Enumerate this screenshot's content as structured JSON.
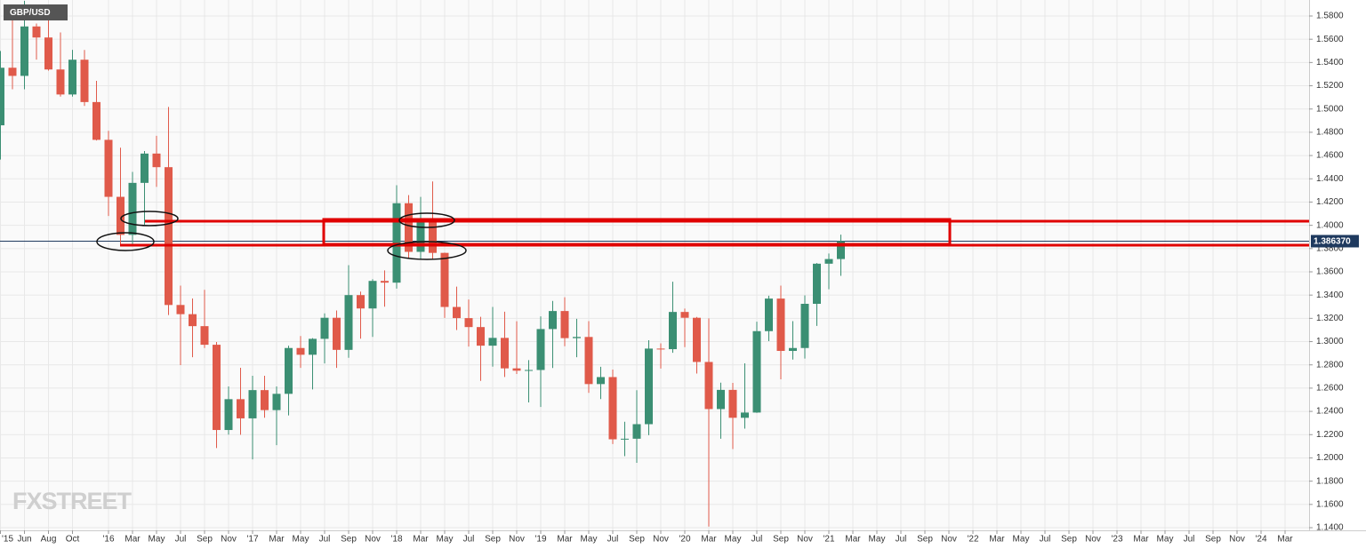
{
  "chart_data": {
    "type": "candlestick",
    "symbol": "GBP/USD",
    "watermark": "FXSTREET",
    "open": [
      1.486,
      1.5355,
      1.5285,
      1.571,
      1.5615,
      1.534,
      1.5125,
      1.5424,
      1.506,
      1.4735,
      1.4245,
      1.3918,
      1.4365,
      1.4617,
      1.45,
      1.3315,
      1.3236,
      1.3133,
      1.2973,
      1.224,
      1.2505,
      1.234,
      1.2583,
      1.2411,
      1.2551,
      1.2945,
      1.2887,
      1.3024,
      1.3205,
      1.2929,
      1.34,
      1.3285,
      1.3522,
      1.3507,
      1.419,
      1.3772,
      1.4025,
      1.3763,
      1.3298,
      1.3202,
      1.3125,
      1.2965,
      1.3032,
      1.277,
      1.275,
      1.2756,
      1.3108,
      1.3263,
      1.303,
      1.304,
      1.2635,
      1.2695,
      1.216,
      1.2165,
      1.229,
      1.294,
      1.2935,
      1.3255,
      1.3205,
      1.2825,
      1.242,
      1.2585,
      1.2345,
      1.239,
      1.309,
      1.337,
      1.292,
      1.2945,
      1.3325,
      1.367,
      1.371
    ],
    "high": [
      1.5499,
      1.5815,
      1.593,
      1.5735,
      1.5819,
      1.5659,
      1.5509,
      1.5508,
      1.5242,
      1.4813,
      1.4668,
      1.4459,
      1.4639,
      1.477,
      1.5018,
      1.3482,
      1.3371,
      1.3445,
      1.2997,
      1.2615,
      1.2775,
      1.2706,
      1.2706,
      1.2615,
      1.2965,
      1.3048,
      1.303,
      1.3243,
      1.3268,
      1.3657,
      1.343,
      1.3537,
      1.3612,
      1.4345,
      1.426,
      1.4245,
      1.4377,
      1.3765,
      1.3473,
      1.3362,
      1.3213,
      1.3298,
      1.3257,
      1.3175,
      1.2841,
      1.3217,
      1.335,
      1.3381,
      1.3196,
      1.3176,
      1.2784,
      1.276,
      1.2311,
      1.2582,
      1.3012,
      1.2985,
      1.3515,
      1.3284,
      1.3212,
      1.32,
      1.2647,
      1.2645,
      1.2813,
      1.3171,
      1.3395,
      1.3482,
      1.3176,
      1.3398,
      1.3675,
      1.3758,
      1.392
    ],
    "low": [
      1.4565,
      1.517,
      1.517,
      1.5425,
      1.533,
      1.5107,
      1.5107,
      1.5027,
      1.473,
      1.408,
      1.3836,
      1.3838,
      1.4006,
      1.433,
      1.3229,
      1.2798,
      1.2866,
      1.2945,
      1.2085,
      1.22,
      1.2199,
      1.1987,
      1.2345,
      1.2109,
      1.2365,
      1.2774,
      1.2589,
      1.2812,
      1.2774,
      1.2861,
      1.3025,
      1.304,
      1.33,
      1.3456,
      1.3712,
      1.371,
      1.3711,
      1.3204,
      1.31,
      1.2957,
      1.2662,
      1.2785,
      1.2696,
      1.2722,
      1.2477,
      1.2438,
      1.2773,
      1.296,
      1.2866,
      1.2559,
      1.2506,
      1.2119,
      1.2015,
      1.1958,
      1.2195,
      1.2768,
      1.2904,
      1.2953,
      1.2725,
      1.141,
      1.2165,
      1.2076,
      1.2252,
      1.2387,
      1.3004,
      1.2676,
      1.2846,
      1.2854,
      1.3135,
      1.345,
      1.3566
    ],
    "close": [
      1.5355,
      1.5285,
      1.571,
      1.5615,
      1.534,
      1.5125,
      1.5424,
      1.506,
      1.4735,
      1.4245,
      1.3918,
      1.4365,
      1.4617,
      1.45,
      1.3315,
      1.3236,
      1.3133,
      1.2973,
      1.224,
      1.2505,
      1.234,
      1.2583,
      1.2411,
      1.2551,
      1.2945,
      1.2887,
      1.3024,
      1.3205,
      1.2929,
      1.34,
      1.3285,
      1.3522,
      1.3507,
      1.419,
      1.3772,
      1.4025,
      1.3763,
      1.3298,
      1.3202,
      1.3125,
      1.2965,
      1.3032,
      1.277,
      1.275,
      1.2756,
      1.3108,
      1.3263,
      1.303,
      1.304,
      1.2635,
      1.2695,
      1.216,
      1.2165,
      1.229,
      1.294,
      1.2935,
      1.3255,
      1.3205,
      1.2825,
      1.242,
      1.2585,
      1.2345,
      1.239,
      1.309,
      1.337,
      1.292,
      1.2945,
      1.3325,
      1.367,
      1.371,
      1.3864
    ],
    "up_color": "#3b8f73",
    "down_color": "#e05a4a",
    "grid": true,
    "xlim": [
      0,
      109
    ],
    "xticks": [
      {
        "value": 0,
        "label": "'15"
      },
      {
        "value": 2,
        "label": "Jun"
      },
      {
        "value": 4,
        "label": "Aug"
      },
      {
        "value": 6,
        "label": "Oct"
      },
      {
        "value": 9,
        "label": "'16"
      },
      {
        "value": 11,
        "label": "Mar"
      },
      {
        "value": 13,
        "label": "May"
      },
      {
        "value": 15,
        "label": "Jul"
      },
      {
        "value": 17,
        "label": "Sep"
      },
      {
        "value": 19,
        "label": "Nov"
      },
      {
        "value": 21,
        "label": "'17"
      },
      {
        "value": 23,
        "label": "Mar"
      },
      {
        "value": 25,
        "label": "May"
      },
      {
        "value": 27,
        "label": "Jul"
      },
      {
        "value": 29,
        "label": "Sep"
      },
      {
        "value": 31,
        "label": "Nov"
      },
      {
        "value": 33,
        "label": "'18"
      },
      {
        "value": 35,
        "label": "Mar"
      },
      {
        "value": 37,
        "label": "May"
      },
      {
        "value": 39,
        "label": "Jul"
      },
      {
        "value": 41,
        "label": "Sep"
      },
      {
        "value": 43,
        "label": "Nov"
      },
      {
        "value": 45,
        "label": "'19"
      },
      {
        "value": 47,
        "label": "Mar"
      },
      {
        "value": 49,
        "label": "May"
      },
      {
        "value": 51,
        "label": "Jul"
      },
      {
        "value": 53,
        "label": "Sep"
      },
      {
        "value": 55,
        "label": "Nov"
      },
      {
        "value": 57,
        "label": "'20"
      },
      {
        "value": 59,
        "label": "Mar"
      },
      {
        "value": 61,
        "label": "May"
      },
      {
        "value": 63,
        "label": "Jul"
      },
      {
        "value": 65,
        "label": "Sep"
      },
      {
        "value": 67,
        "label": "Nov"
      },
      {
        "value": 69,
        "label": "'21"
      },
      {
        "value": 71,
        "label": "Mar"
      },
      {
        "value": 73,
        "label": "May"
      },
      {
        "value": 75,
        "label": "Jul"
      },
      {
        "value": 77,
        "label": "Sep"
      },
      {
        "value": 79,
        "label": "Nov"
      },
      {
        "value": 81,
        "label": "'22"
      },
      {
        "value": 83,
        "label": "Mar"
      },
      {
        "value": 85,
        "label": "May"
      },
      {
        "value": 87,
        "label": "Jul"
      },
      {
        "value": 89,
        "label": "Sep"
      },
      {
        "value": 91,
        "label": "Nov"
      },
      {
        "value": 93,
        "label": "'23"
      },
      {
        "value": 95,
        "label": "Mar"
      },
      {
        "value": 97,
        "label": "May"
      },
      {
        "value": 99,
        "label": "Jul"
      },
      {
        "value": 101,
        "label": "Sep"
      },
      {
        "value": 103,
        "label": "Nov"
      },
      {
        "value": 105,
        "label": "'24"
      },
      {
        "value": 107,
        "label": "Mar"
      }
    ],
    "ylim": [
      1.14,
      1.58
    ],
    "yticks": [
      {
        "value": 1.14,
        "label": "1.1400"
      },
      {
        "value": 1.16,
        "label": "1.1600"
      },
      {
        "value": 1.18,
        "label": "1.1800"
      },
      {
        "value": 1.2,
        "label": "1.2000"
      },
      {
        "value": 1.22,
        "label": "1.2200"
      },
      {
        "value": 1.24,
        "label": "1.2400"
      },
      {
        "value": 1.26,
        "label": "1.2600"
      },
      {
        "value": 1.28,
        "label": "1.2800"
      },
      {
        "value": 1.3,
        "label": "1.3000"
      },
      {
        "value": 1.32,
        "label": "1.3200"
      },
      {
        "value": 1.34,
        "label": "1.3400"
      },
      {
        "value": 1.36,
        "label": "1.3600"
      },
      {
        "value": 1.38,
        "label": "1.3800"
      },
      {
        "value": 1.4,
        "label": "1.4000"
      },
      {
        "value": 1.42,
        "label": "1.4200"
      },
      {
        "value": 1.44,
        "label": "1.4400"
      },
      {
        "value": 1.46,
        "label": "1.4600"
      },
      {
        "value": 1.48,
        "label": "1.4800"
      },
      {
        "value": 1.5,
        "label": "1.5000"
      },
      {
        "value": 1.52,
        "label": "1.5200"
      },
      {
        "value": 1.54,
        "label": "1.5400"
      },
      {
        "value": 1.56,
        "label": "1.5600"
      },
      {
        "value": 1.58,
        "label": "1.5800"
      }
    ],
    "last_price": {
      "value": 1.38637,
      "label": "1.386370"
    }
  }
}
